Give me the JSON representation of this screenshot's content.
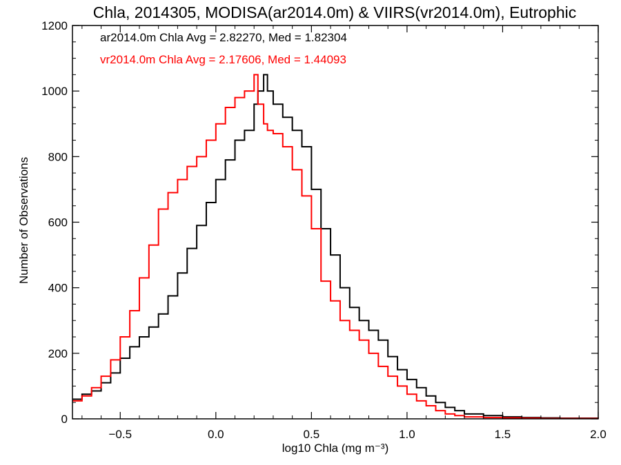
{
  "chart_data": {
    "type": "histogram-step",
    "title": "Chla, 2014305, MODISA(ar2014.0m) & VIIRS(vr2014.0m), Eutrophic",
    "xlabel": "log10 Chla (mg m⁻³)",
    "ylabel": "Number of Observations",
    "xlim": [
      -0.75,
      2.0
    ],
    "ylim": [
      0,
      1200
    ],
    "xticks": [
      -0.5,
      0.0,
      0.5,
      1.0,
      1.5,
      2.0
    ],
    "xtick_labels": [
      "−0.5",
      "0.0",
      "0.5",
      "1.0",
      "1.5",
      "2.0"
    ],
    "yticks": [
      0,
      200,
      400,
      600,
      800,
      1000,
      1200
    ],
    "ytick_labels": [
      "0",
      "200",
      "400",
      "600",
      "800",
      "1000",
      "1200"
    ],
    "grid": false,
    "annotations": [
      {
        "text": "ar2014.0m Chla Avg = 2.82270, Med = 1.82304",
        "color": "#000000"
      },
      {
        "text": "vr2014.0m Chla Avg = 2.17606, Med = 1.44093",
        "color": "#ff0000"
      }
    ],
    "series": [
      {
        "color": "#000000",
        "x": [
          -0.75,
          -0.7,
          -0.65,
          -0.6,
          -0.55,
          -0.5,
          -0.45,
          -0.4,
          -0.35,
          -0.3,
          -0.25,
          -0.2,
          -0.15,
          -0.1,
          -0.05,
          0.0,
          0.05,
          0.1,
          0.15,
          0.2,
          0.22,
          0.25,
          0.27,
          0.3,
          0.35,
          0.4,
          0.45,
          0.5,
          0.55,
          0.6,
          0.65,
          0.7,
          0.75,
          0.8,
          0.85,
          0.9,
          0.95,
          1.0,
          1.05,
          1.1,
          1.15,
          1.2,
          1.25,
          1.3,
          1.4,
          1.5,
          1.6,
          1.7,
          1.8,
          2.0
        ],
        "values": [
          60,
          75,
          85,
          110,
          140,
          185,
          220,
          250,
          280,
          320,
          375,
          445,
          520,
          590,
          660,
          730,
          790,
          850,
          880,
          960,
          1000,
          1050,
          1000,
          960,
          920,
          880,
          830,
          700,
          580,
          500,
          400,
          340,
          300,
          270,
          240,
          190,
          150,
          120,
          95,
          70,
          50,
          35,
          25,
          15,
          10,
          6,
          4,
          3,
          2,
          1
        ]
      },
      {
        "color": "#ff0000",
        "x": [
          -0.75,
          -0.7,
          -0.65,
          -0.6,
          -0.55,
          -0.5,
          -0.45,
          -0.4,
          -0.35,
          -0.3,
          -0.25,
          -0.2,
          -0.15,
          -0.1,
          -0.05,
          0.0,
          0.05,
          0.1,
          0.15,
          0.2,
          0.22,
          0.25,
          0.27,
          0.3,
          0.35,
          0.4,
          0.45,
          0.5,
          0.55,
          0.6,
          0.65,
          0.7,
          0.75,
          0.8,
          0.85,
          0.9,
          0.95,
          1.0,
          1.05,
          1.1,
          1.15,
          1.2,
          1.25,
          1.3,
          1.4,
          1.5,
          1.6,
          1.7,
          1.8,
          2.0
        ],
        "values": [
          55,
          70,
          95,
          130,
          180,
          250,
          330,
          430,
          530,
          640,
          690,
          730,
          770,
          800,
          850,
          900,
          950,
          980,
          1000,
          1050,
          960,
          900,
          880,
          870,
          830,
          760,
          680,
          580,
          420,
          360,
          300,
          270,
          240,
          200,
          160,
          130,
          100,
          75,
          55,
          40,
          25,
          15,
          10,
          6,
          4,
          3,
          2,
          1,
          1,
          0
        ]
      }
    ]
  }
}
